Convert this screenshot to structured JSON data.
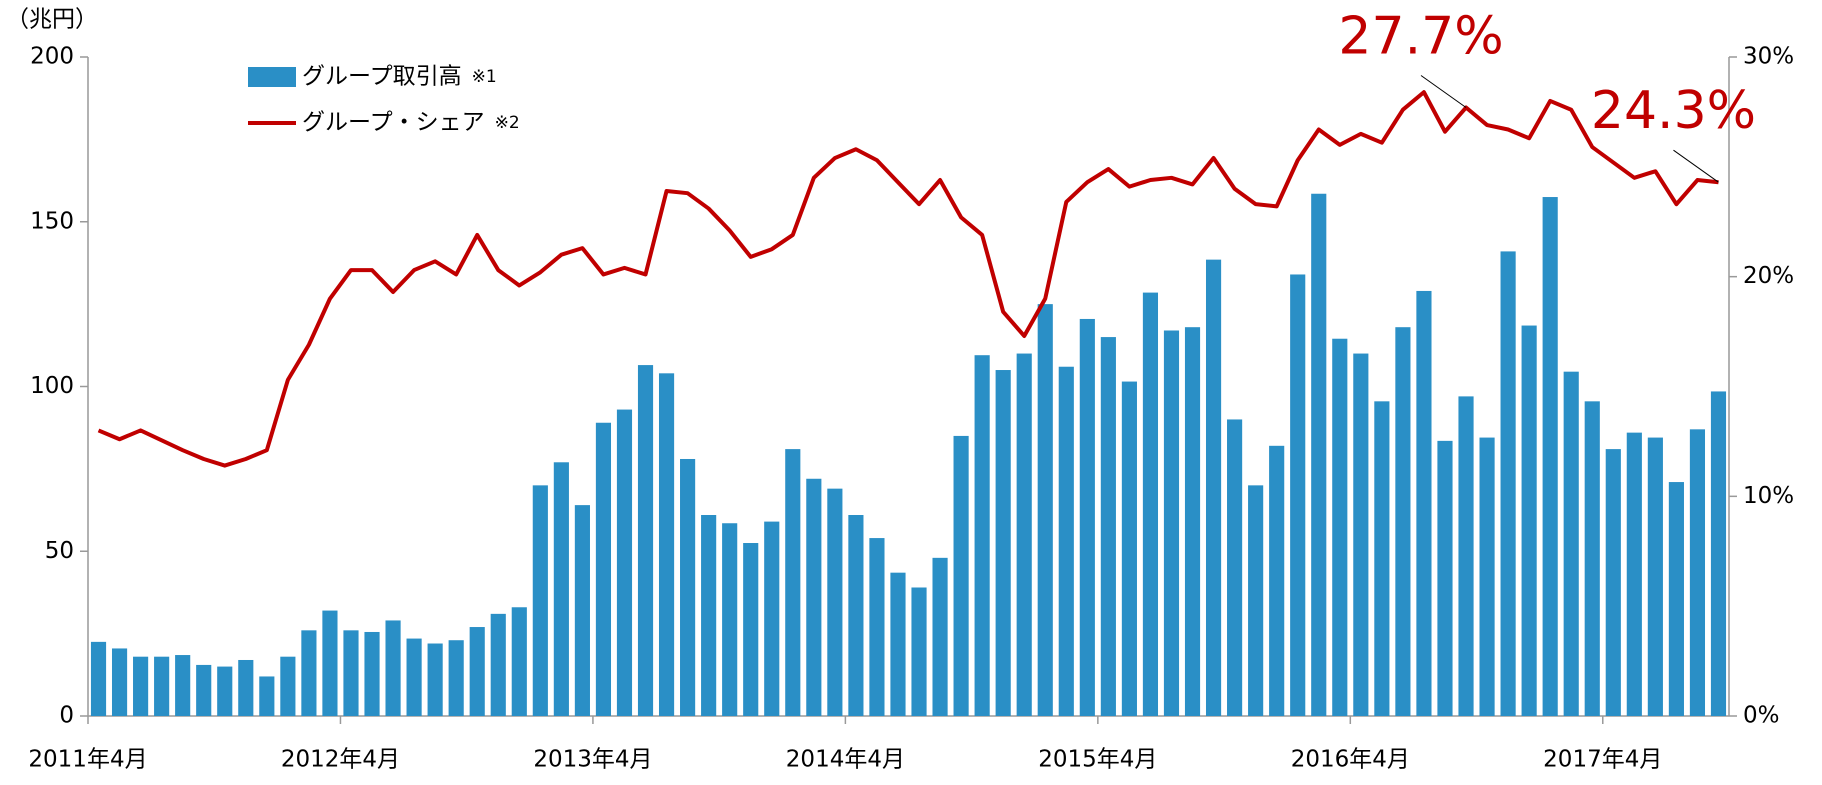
{
  "chart_data": {
    "type": "bar_line",
    "y_label": "（兆円）",
    "categories": [
      "2011年4月",
      null,
      null,
      null,
      null,
      null,
      null,
      null,
      null,
      null,
      null,
      null,
      "2012年4月",
      null,
      null,
      null,
      null,
      null,
      null,
      null,
      null,
      null,
      null,
      null,
      "2013年4月",
      null,
      null,
      null,
      null,
      null,
      null,
      null,
      null,
      null,
      null,
      null,
      "2014年4月",
      null,
      null,
      null,
      null,
      null,
      null,
      null,
      null,
      null,
      null,
      null,
      "2015年4月",
      null,
      null,
      null,
      null,
      null,
      null,
      null,
      null,
      null,
      null,
      null,
      "2016年4月",
      null,
      null,
      null,
      null,
      null,
      null,
      null,
      null,
      null,
      null,
      null,
      "2017年4月",
      null,
      null,
      null,
      null,
      null
    ],
    "series": [
      {
        "name": "グループ取引高",
        "note": "※1",
        "kind": "bar",
        "color": "#2a8fc6",
        "values": [
          22.5,
          20.5,
          18,
          18,
          18.5,
          15.5,
          15,
          17,
          12,
          18,
          26,
          32,
          26,
          25.5,
          29,
          23.5,
          22,
          23,
          27,
          31,
          33,
          70,
          77,
          64,
          89,
          93,
          106.5,
          104,
          78,
          61,
          58.5,
          52.5,
          59,
          81,
          72,
          69,
          61,
          54,
          43.5,
          39,
          48,
          85,
          109.5,
          105,
          110,
          125,
          106,
          120.5,
          115,
          101.5,
          128.5,
          117,
          118,
          138.5,
          90,
          70,
          82,
          134,
          158.5,
          114.5,
          110,
          95.5,
          118,
          129,
          83.5,
          97,
          84.5,
          141,
          118.5,
          157.5,
          104.5,
          95.5,
          81,
          86,
          84.5,
          71,
          87,
          98.5
        ]
      },
      {
        "name": "グループ・シェア",
        "note": "※2",
        "kind": "line",
        "axis": "y2",
        "color": "#c00000",
        "values": [
          13.0,
          12.6,
          13.0,
          12.55,
          12.1,
          11.7,
          11.4,
          11.7,
          12.1,
          15.3,
          16.9,
          19.0,
          20.3,
          20.3,
          19.3,
          20.3,
          20.7,
          20.1,
          21.9,
          20.3,
          19.6,
          20.2,
          21.0,
          21.3,
          20.1,
          20.4,
          20.1,
          23.9,
          23.8,
          23.1,
          22.1,
          20.9,
          21.25,
          21.9,
          24.5,
          25.4,
          25.8,
          25.3,
          24.3,
          23.3,
          24.4,
          22.7,
          21.9,
          18.4,
          17.3,
          19.0,
          23.4,
          24.3,
          24.9,
          24.1,
          24.4,
          24.5,
          24.2,
          25.4,
          24.0,
          23.3,
          23.2,
          25.3,
          26.7,
          26.0,
          26.5,
          26.1,
          27.6,
          28.4,
          26.6,
          27.7,
          26.9,
          26.7,
          26.3,
          28.0,
          27.6,
          25.9,
          25.2,
          24.5,
          24.8,
          23.3,
          24.4,
          24.3
        ],
        "value_labels": [
          null,
          null,
          null,
          null,
          null,
          null,
          null,
          null,
          null,
          null,
          null,
          null,
          null,
          null,
          null,
          null,
          null,
          null,
          null,
          null,
          null,
          null,
          null,
          null,
          null,
          null,
          null,
          null,
          null,
          null,
          null,
          null,
          null,
          null,
          null,
          null,
          null,
          null,
          null,
          null,
          null,
          null,
          null,
          null,
          null,
          null,
          null,
          null,
          null,
          null,
          null,
          null,
          null,
          null,
          null,
          null,
          null,
          null,
          null,
          null,
          null,
          null,
          null,
          null,
          null,
          "27.7%",
          null,
          null,
          null,
          null,
          null,
          null,
          null,
          null,
          null,
          null,
          null,
          "24.3%"
        ]
      }
    ],
    "ylim": [
      0,
      200
    ],
    "yticks": [
      0,
      50,
      100,
      150,
      200
    ],
    "y2lim": [
      0,
      30
    ],
    "y2ticks": [
      {
        "value": 0,
        "label": "0%"
      },
      {
        "value": 10,
        "label": "10%"
      },
      {
        "value": 20,
        "label": "20%"
      },
      {
        "value": 30,
        "label": "30%"
      }
    ],
    "legend": "upper left",
    "grid": false
  }
}
